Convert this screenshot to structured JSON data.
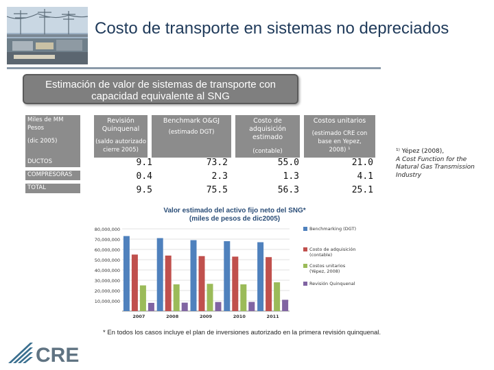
{
  "title": "Costo de transporte en sistemas no depreciados",
  "subtitle": "Estimación de valor de sistemas de transporte con capacidad equivalente al SNG",
  "table": {
    "corner_line1": "Miles de MM Pesos",
    "corner_line2": "(dic 2005)",
    "columns": [
      {
        "line1": "Revisión",
        "line2": "Quinquenal",
        "line3": "(saldo autorizado",
        "line4": "cierre 2005)"
      },
      {
        "line1": "Benchmark O&GJ",
        "line2": "(estimado DGT)"
      },
      {
        "line1": "Costo de",
        "line2": "adquisición",
        "line3": "estimado",
        "line4": "(contable)"
      },
      {
        "line1": "Costos unitarios",
        "line2": "(estimado CRE con",
        "line3": "base en Yepez,",
        "line4": "2008) ¹"
      }
    ],
    "rows": [
      {
        "label": "DUCTOS",
        "values": [
          "9.1",
          "73.2",
          "55.0",
          "21.0"
        ]
      },
      {
        "label": "COMPRESORAS",
        "values": [
          "0.4",
          "2.3",
          "1.3",
          "4.1"
        ]
      },
      {
        "label": "TOTAL",
        "values": [
          "9.5",
          "75.5",
          "56.3",
          "25.1"
        ]
      }
    ]
  },
  "note": {
    "line1": "¹⁾ Yépez (2008),",
    "line2": "A Cost Function for the",
    "line3": "Natural Gas Transmission",
    "line4": "Industry"
  },
  "chart_data": {
    "type": "bar",
    "title_line1": "Valor estimado del activo fijo neto del SNG*",
    "title_line2": "(miles de pesos de dic2005)",
    "categories": [
      "2007",
      "2008",
      "2009",
      "2010",
      "2011"
    ],
    "ylim": [
      0,
      80000000
    ],
    "yticks": [
      "80,000,000",
      "70,000,000",
      "60,000,000",
      "50,000,000",
      "40,000,000",
      "30,000,000",
      "20,000,000",
      "10,000,000"
    ],
    "ytick_values": [
      80000000,
      70000000,
      60000000,
      50000000,
      40000000,
      30000000,
      20000000,
      10000000
    ],
    "series": [
      {
        "name": "Benchmarking (DGT)",
        "color": "#4f81bd",
        "values": [
          73000000,
          71000000,
          69000000,
          68000000,
          67000000
        ]
      },
      {
        "name": "Costo de adquisición (contable)",
        "color": "#c0504d",
        "values": [
          55000000,
          54000000,
          53500000,
          53000000,
          52500000
        ]
      },
      {
        "name": "Costos unitarios (Yépez, 2008)",
        "color": "#9bbb59",
        "values": [
          25000000,
          26000000,
          26500000,
          26000000,
          28000000
        ]
      },
      {
        "name": "Revisión Quinquenal",
        "color": "#8064a2",
        "values": [
          8000000,
          8200000,
          8800000,
          8900000,
          11000000
        ]
      }
    ]
  },
  "footnote": "* En todos los casos incluye el plan de inversiones autorizado en la primera revisión quinquenal.",
  "logo": {
    "text": "CRE"
  }
}
